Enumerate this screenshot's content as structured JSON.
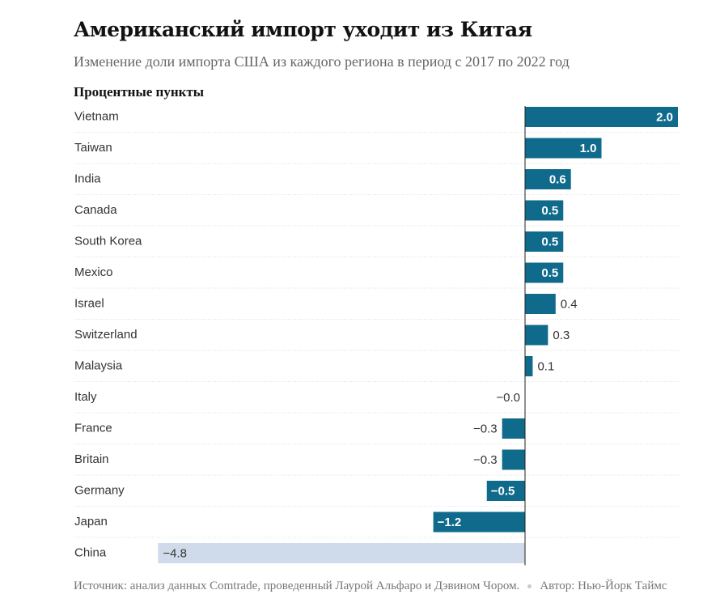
{
  "title": "Американский импорт уходит из Китая",
  "subtitle": "Изменение доли импорта США из каждого региона в период с 2017 по 2022 год",
  "footer": {
    "source": "Источник: анализ данных Comtrade, проведенный Лаурой Альфаро и Дэвином Чором.",
    "author": "Автор: Нью-Йорк Таймс"
  },
  "chart_data": {
    "type": "bar",
    "orientation": "horizontal",
    "ylabel": "Процентные пункты",
    "categories": [
      "Vietnam",
      "Taiwan",
      "India",
      "Canada",
      "South Korea",
      "Mexico",
      "Israel",
      "Switzerland",
      "Malaysia",
      "Italy",
      "France",
      "Britain",
      "Germany",
      "Japan",
      "China"
    ],
    "values": [
      2.0,
      1.0,
      0.6,
      0.5,
      0.5,
      0.5,
      0.4,
      0.3,
      0.1,
      -0.0,
      -0.3,
      -0.3,
      -0.5,
      -1.2,
      -4.8
    ],
    "labels": [
      "2.0",
      "1.0",
      "0.6",
      "0.5",
      "0.5",
      "0.5",
      "0.4",
      "0.3",
      "0.1",
      "−0.0",
      "−0.3",
      "−0.3",
      "−0.5",
      "−1.2",
      "−4.8"
    ],
    "colors": {
      "default": "#0f6a8b",
      "highlight": "#cfdbea"
    },
    "highlight": "China",
    "xlim": [
      -4.8,
      2.0
    ],
    "grid": false
  }
}
